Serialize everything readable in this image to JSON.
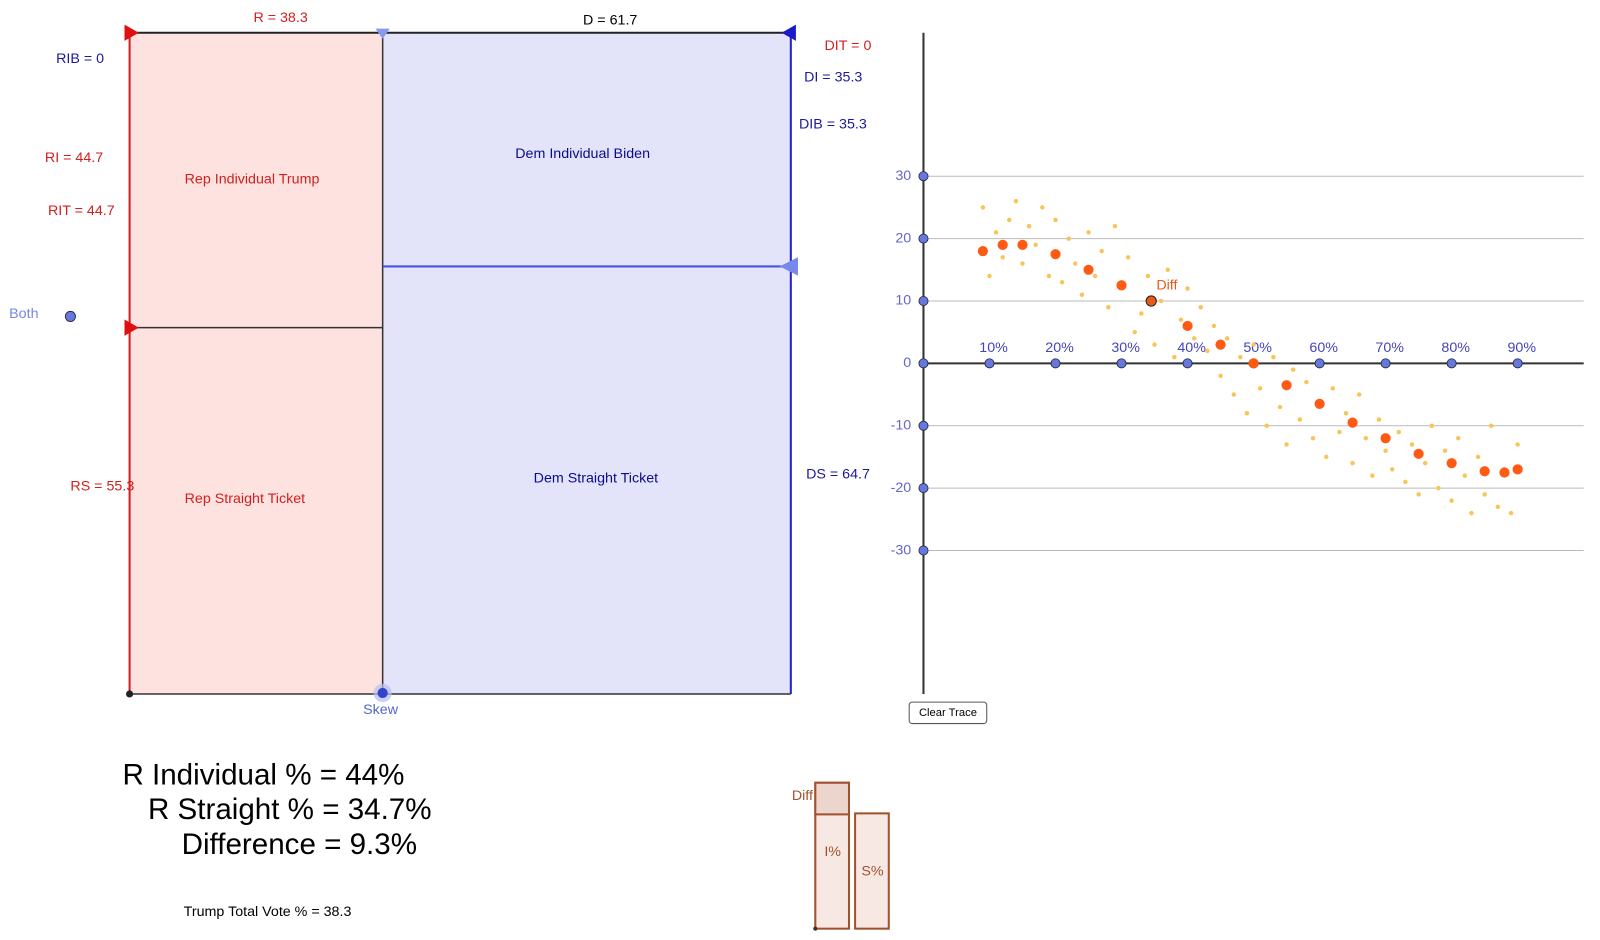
{
  "left_panel": {
    "r_label": "R = 38.3",
    "d_label": "D = 61.7",
    "rib_label": "RIB = 0",
    "ri_label": "RI = 44.7",
    "rit_label": "RIT = 44.7",
    "both_label": "Both",
    "rs_label": "RS = 55.3",
    "dit_label": "DIT = 0",
    "di_label": "DI = 35.3",
    "dib_label": "DIB = 35.3",
    "ds_label": "DS = 64.7",
    "skew_label": "Skew",
    "regions": [
      "Rep Individual Trump",
      "Rep Straight Ticket",
      "Dem Individual Biden",
      "Dem Straight Ticket"
    ]
  },
  "graph": {
    "xlim": [
      0,
      100
    ],
    "ylim": [
      -53,
      53
    ],
    "yticks": [
      -30,
      -20,
      -10,
      0,
      10,
      20,
      30
    ],
    "xticks": [
      {
        "value": 10,
        "label": "10%"
      },
      {
        "value": 20,
        "label": "20%"
      },
      {
        "value": 30,
        "label": "30%"
      },
      {
        "value": 40,
        "label": "40%"
      },
      {
        "value": 50,
        "label": "50%"
      },
      {
        "value": 60,
        "label": "60%"
      },
      {
        "value": 70,
        "label": "70%"
      },
      {
        "value": 80,
        "label": "80%"
      },
      {
        "value": 90,
        "label": "90%"
      }
    ],
    "point_label": "Diff",
    "button": "Clear Trace",
    "curve": {
      "x": [
        9,
        12,
        15,
        20,
        25,
        30,
        34.5,
        40,
        45,
        50,
        55,
        60,
        65,
        70,
        75,
        80,
        85,
        88,
        90
      ],
      "y": [
        18,
        19,
        19,
        17.5,
        15,
        12.5,
        10,
        6,
        3,
        0,
        -3.5,
        -6.5,
        -9.5,
        -12,
        -14.5,
        -16,
        -17.3,
        -17.5,
        -17
      ]
    },
    "scatter": {
      "x": [
        9,
        10,
        11,
        12,
        13,
        14,
        15,
        16,
        17,
        18,
        19,
        20,
        21,
        22,
        23,
        24,
        25,
        26,
        27,
        28,
        29,
        30,
        31,
        32,
        33,
        34,
        35,
        36,
        37,
        38,
        39,
        40,
        41,
        42,
        43,
        44,
        45,
        46,
        47,
        48,
        49,
        50,
        51,
        52,
        53,
        54,
        55,
        56,
        57,
        58,
        59,
        60,
        61,
        62,
        63,
        64,
        65,
        66,
        67,
        68,
        69,
        70,
        71,
        72,
        73,
        74,
        75,
        76,
        77,
        78,
        79,
        80,
        81,
        82,
        83,
        84,
        85,
        86,
        87,
        88,
        89,
        90
      ],
      "y": [
        25,
        14,
        21,
        17,
        23,
        26,
        16,
        22,
        19,
        25,
        14,
        23,
        13,
        20,
        16,
        11,
        21,
        14,
        18,
        9,
        22,
        13,
        17,
        5,
        8,
        14,
        3,
        10,
        15,
        1,
        7,
        12,
        4,
        9,
        2,
        6,
        -2,
        4,
        -5,
        1,
        -8,
        3,
        -4,
        -10,
        1,
        -7,
        -13,
        -1,
        -9,
        -3,
        -12,
        -6,
        -15,
        -4,
        -11,
        -8,
        -16,
        -5,
        -12,
        -18,
        -9,
        -14,
        -17,
        -11,
        -19,
        -13,
        -21,
        -16,
        -10,
        -20,
        -14,
        -22,
        -12,
        -18,
        -24,
        -15,
        -21,
        -10,
        -23,
        -17,
        -24,
        -13
      ]
    }
  },
  "summary": {
    "lines": [
      "R Individual % = 44%",
      "R Straight % = 34.7%",
      "Difference = 9.3%"
    ],
    "total": "Trump Total Vote % = 38.3"
  },
  "bars": {
    "labels": [
      "Diff",
      "I%",
      "S%"
    ]
  }
}
